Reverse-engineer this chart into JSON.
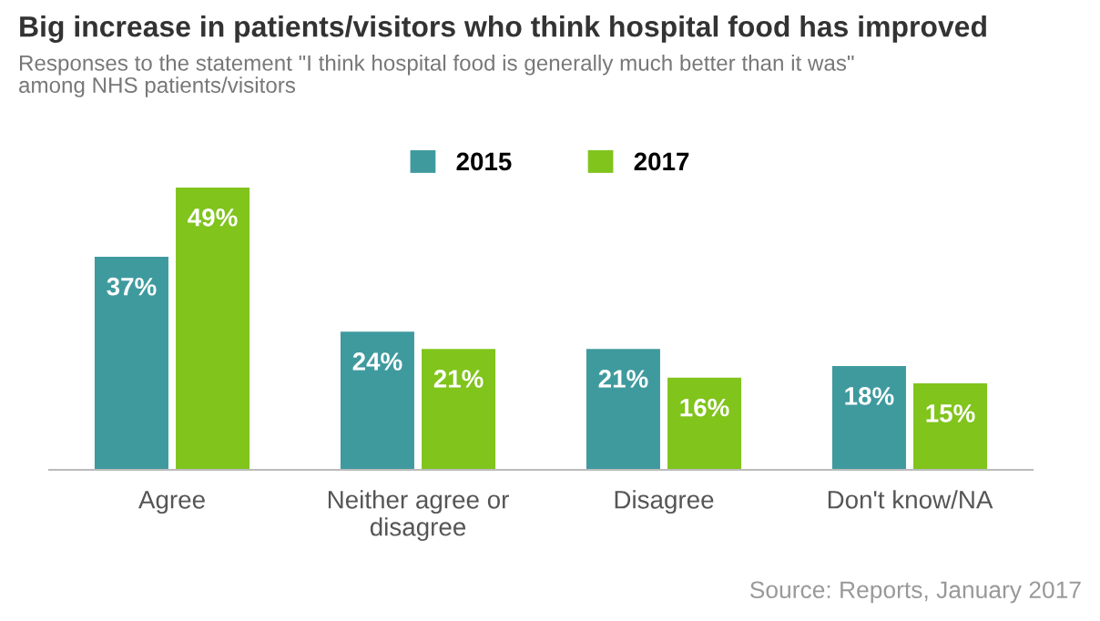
{
  "chart_data": {
    "type": "bar",
    "title": "Big increase in patients/visitors who think hospital food has improved",
    "subtitle": "Responses to the statement \"I think hospital food is generally much better than it was\"\namong NHS patients/visitors",
    "categories": [
      "Agree",
      "Neither agree or\ndisagree",
      "Disagree",
      "Don't know/NA"
    ],
    "series": [
      {
        "name": "2015",
        "color": "#3f9a9e",
        "values": [
          37,
          24,
          21,
          18
        ],
        "value_labels": [
          "37%",
          "24%",
          "21%",
          "18%"
        ]
      },
      {
        "name": "2017",
        "color": "#80c41c",
        "values": [
          49,
          21,
          16,
          15
        ],
        "value_labels": [
          "49%",
          "21%",
          "16%",
          "15%"
        ]
      }
    ],
    "legend": "top",
    "grid": false,
    "tick_labels": "x",
    "annotations": [
      "Source: Reports, January 2017"
    ]
  }
}
